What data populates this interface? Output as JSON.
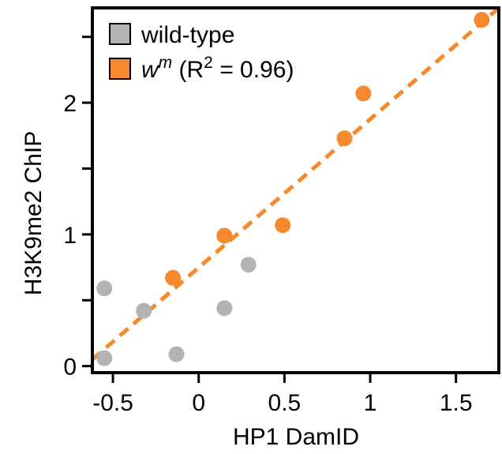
{
  "chart_data": {
    "type": "scatter",
    "title": "",
    "xlabel": "HP1 DamID",
    "ylabel": "H3K9me2 ChIP",
    "xlim": [
      -0.62,
      1.75
    ],
    "ylim": [
      -0.05,
      2.72
    ],
    "xticks": [
      {
        "value": -0.5,
        "label": "-0.5"
      },
      {
        "value": 0,
        "label": "0"
      },
      {
        "value": 0.5,
        "label": "0.5"
      },
      {
        "value": 1,
        "label": "1"
      },
      {
        "value": 1.5,
        "label": "1.5"
      }
    ],
    "yticks": [
      {
        "value": 0,
        "label": "0"
      },
      {
        "value": 0.5,
        "label": ""
      },
      {
        "value": 1,
        "label": "1"
      },
      {
        "value": 1.5,
        "label": ""
      },
      {
        "value": 2,
        "label": "2"
      },
      {
        "value": 2.5,
        "label": ""
      }
    ],
    "grid": false,
    "legend": "top-left",
    "series": [
      {
        "name": "wild-type",
        "color": "#b3b3b3",
        "points": [
          {
            "x": -0.55,
            "y": 0.06
          },
          {
            "x": -0.55,
            "y": 0.59
          },
          {
            "x": -0.32,
            "y": 0.42
          },
          {
            "x": -0.13,
            "y": 0.09
          },
          {
            "x": 0.15,
            "y": 0.44
          },
          {
            "x": 0.29,
            "y": 0.77
          }
        ]
      },
      {
        "name_italic": "w",
        "name_superscript": "m",
        "name_rest_open": " (R",
        "name_r2_sup": "2",
        "name_rest_close": " = 0.96)",
        "color": "#f7892d",
        "points": [
          {
            "x": -0.15,
            "y": 0.67
          },
          {
            "x": 0.15,
            "y": 0.99
          },
          {
            "x": 0.49,
            "y": 1.07
          },
          {
            "x": 0.85,
            "y": 1.73
          },
          {
            "x": 0.96,
            "y": 2.07
          },
          {
            "x": 1.65,
            "y": 2.63
          }
        ],
        "fit": {
          "x": [
            -0.62,
            1.75
          ],
          "y": [
            0.05,
            2.72
          ],
          "dashed": true
        }
      }
    ]
  }
}
